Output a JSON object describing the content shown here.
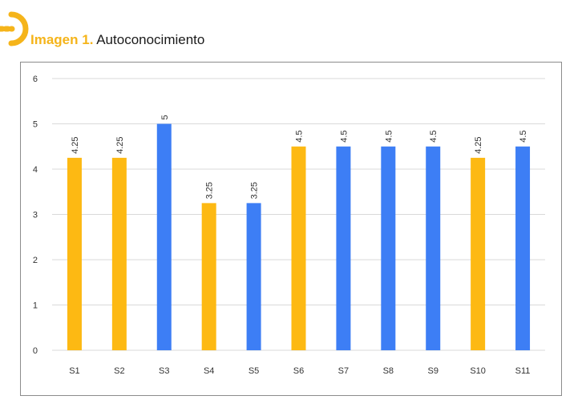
{
  "header": {
    "label": "Imagen 1.",
    "title": "Autoconocimiento"
  },
  "colors": {
    "accent": "#f5b41a",
    "yellow": "#fdb913",
    "blue": "#3d7ef5"
  },
  "chart_data": {
    "type": "bar",
    "categories": [
      "S1",
      "S2",
      "S3",
      "S4",
      "S5",
      "S6",
      "S7",
      "S8",
      "S9",
      "S10",
      "S11"
    ],
    "values": [
      4.25,
      4.25,
      5,
      3.25,
      3.25,
      4.5,
      4.5,
      4.5,
      4.5,
      4.25,
      4.5
    ],
    "data_labels": [
      "4.25",
      "4.25",
      "5",
      "3.25",
      "3.25",
      "4.5",
      "4.5",
      "4.5",
      "4.5",
      "4.25",
      "4.5"
    ],
    "bar_colors": [
      "yellow",
      "yellow",
      "blue",
      "yellow",
      "blue",
      "yellow",
      "blue",
      "blue",
      "blue",
      "yellow",
      "blue"
    ],
    "yticks": [
      0,
      1,
      2,
      3,
      4,
      5,
      6
    ],
    "ylim": [
      0,
      6
    ],
    "grid": true,
    "legend": "none",
    "title": "",
    "xlabel": "",
    "ylabel": ""
  }
}
